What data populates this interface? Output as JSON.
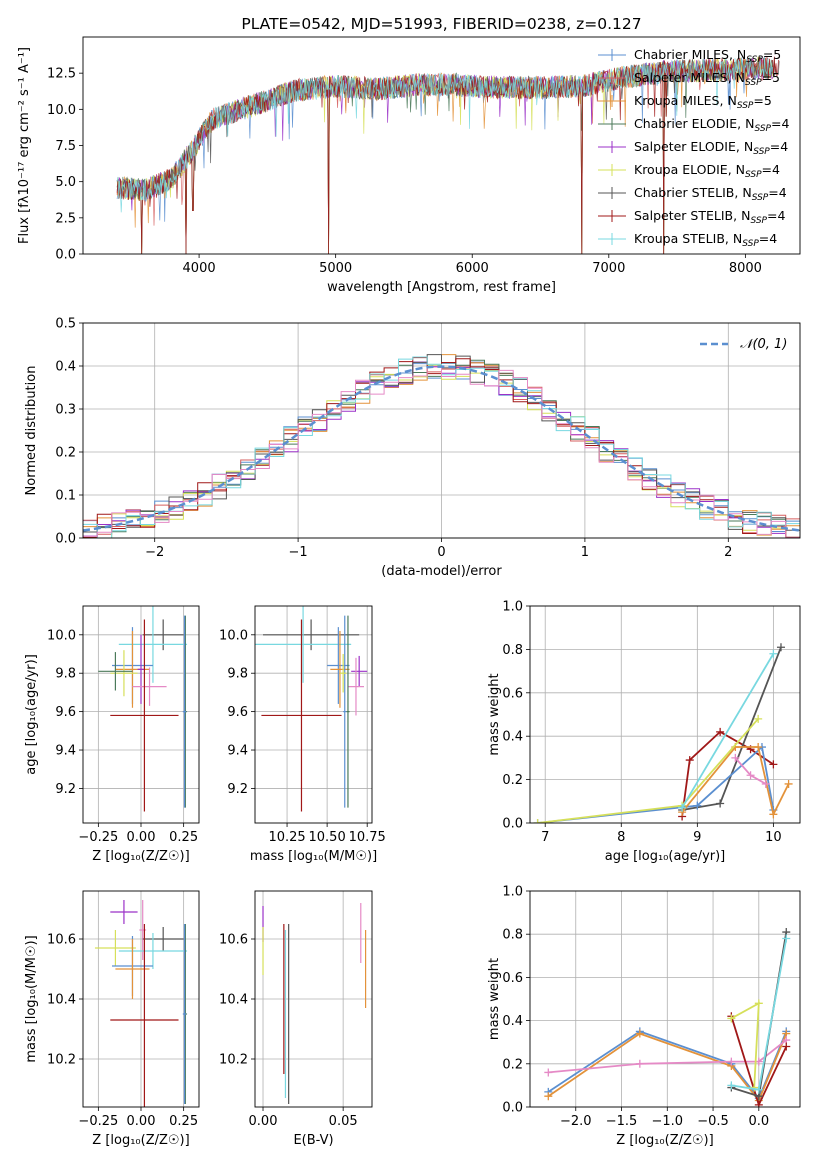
{
  "chart_data": [
    {
      "id": "spectrum",
      "type": "line",
      "title": "PLATE=0542, MJD=51993, FIBERID=0238, z=0.127",
      "xlabel": "wavelength [Angstrom, rest frame]",
      "ylabel": "Flux [fλ10⁻¹⁷ erg cm⁻² s⁻¹ A⁻¹]",
      "xlim": [
        3150,
        8400
      ],
      "ylim": [
        0,
        15
      ],
      "xticks": [
        "4000",
        "5000",
        "6000",
        "7000",
        "8000"
      ],
      "yticks": [
        "0.0",
        "2.5",
        "5.0",
        "7.5",
        "10.0",
        "12.5"
      ],
      "continuum": [
        [
          3400,
          4.6
        ],
        [
          3600,
          4.4
        ],
        [
          3800,
          5.2
        ],
        [
          3950,
          7.2
        ],
        [
          4100,
          9.3
        ],
        [
          4300,
          10.0
        ],
        [
          4500,
          10.6
        ],
        [
          4700,
          11.3
        ],
        [
          5000,
          11.6
        ],
        [
          5300,
          11.4
        ],
        [
          5600,
          11.7
        ],
        [
          5900,
          11.7
        ],
        [
          6200,
          11.5
        ],
        [
          6500,
          11.5
        ],
        [
          6800,
          11.6
        ],
        [
          7100,
          12.2
        ],
        [
          7400,
          12.6
        ],
        [
          7700,
          12.7
        ],
        [
          8000,
          12.8
        ],
        [
          8200,
          12.9
        ]
      ],
      "dips": [
        [
          3580,
          0
        ],
        [
          3905,
          0
        ],
        [
          3955,
          3.0
        ],
        [
          4950,
          0
        ],
        [
          6800,
          0
        ],
        [
          7400,
          0
        ],
        [
          7420,
          9.5
        ]
      ],
      "legend_position": "upper right",
      "legend": [
        {
          "imf": "Chabrier",
          "lib": "MILES",
          "n": "5",
          "color": "#5b8fd0"
        },
        {
          "imf": "Salpeter",
          "lib": "MILES",
          "n": "5",
          "color": "#d65f5f"
        },
        {
          "imf": "Kroupa",
          "lib": "MILES",
          "n": "5",
          "color": "#e3923a"
        },
        {
          "imf": "Chabrier",
          "lib": "ELODIE",
          "n": "4",
          "color": "#4b7a5a"
        },
        {
          "imf": "Salpeter",
          "lib": "ELODIE",
          "n": "4",
          "color": "#9b32c8"
        },
        {
          "imf": "Kroupa",
          "lib": "ELODIE",
          "n": "4",
          "color": "#d6e05a"
        },
        {
          "imf": "Chabrier",
          "lib": "STELIB",
          "n": "4",
          "color": "#555555"
        },
        {
          "imf": "Salpeter",
          "lib": "STELIB",
          "n": "4",
          "color": "#a01818"
        },
        {
          "imf": "Kroupa",
          "lib": "STELIB",
          "n": "4",
          "color": "#78d8e0"
        }
      ]
    },
    {
      "id": "residuals",
      "type": "line",
      "xlabel": "(data-model)/error",
      "ylabel": "Normed distribution",
      "xlim": [
        -2.5,
        2.5
      ],
      "ylim": [
        0,
        0.5
      ],
      "xticks": [
        "−2",
        "−1",
        "0",
        "1",
        "2"
      ],
      "yticks": [
        "0.0",
        "0.1",
        "0.2",
        "0.3",
        "0.4",
        "0.5"
      ],
      "grid": true,
      "series": [
        {
          "name": "𝒩(0, 1)",
          "color": "#5b8fd0",
          "dash": true
        }
      ],
      "hist_bin_width": 0.1
    },
    {
      "id": "age-vs-z",
      "type": "scatter",
      "xlabel": "Z [log₁₀(Z/Z☉)]",
      "ylabel": "age  [log₁₀(age/yr)]",
      "xlim": [
        -0.34,
        0.34
      ],
      "ylim": [
        9.02,
        10.15
      ],
      "xticks": [
        "−0.25",
        "0.00",
        "0.25"
      ],
      "yticks": [
        "9.2",
        "9.4",
        "9.6",
        "9.8",
        "10.0"
      ],
      "grid": true,
      "points": [
        {
          "color": "#555555",
          "x": 0.13,
          "xe": 0.12,
          "y": 10.0,
          "ye": 0.08
        },
        {
          "color": "#78d8e0",
          "x": 0.07,
          "xe": 0.2,
          "y": 9.95,
          "ye": 0.2
        },
        {
          "color": "#5b8fd0",
          "x": -0.05,
          "xe": 0.12,
          "y": 9.84,
          "ye": 0.2
        },
        {
          "color": "#e3923a",
          "x": -0.05,
          "xe": 0.1,
          "y": 9.82,
          "ye": 0.2
        },
        {
          "color": "#d6e05a",
          "x": -0.1,
          "xe": 0.08,
          "y": 9.8,
          "ye": 0.12
        },
        {
          "color": "#4b7a5a",
          "x": -0.15,
          "xe": 0.1,
          "y": 9.81,
          "ye": 0.1
        },
        {
          "color": "#9b32c8",
          "x": 0.0,
          "xe": 0.02,
          "y": 9.82,
          "ye": 0.18
        },
        {
          "color": "#e58ac6",
          "x": 0.05,
          "xe": 0.1,
          "y": 9.73,
          "ye": 0.1
        },
        {
          "color": "#a01818",
          "x": 0.02,
          "xe": 0.2,
          "y": 9.58,
          "ye": 0.5
        },
        {
          "color": "#4b7a5a",
          "x": 0.26,
          "xe": 0.01,
          "y": 9.6,
          "ye": 0.5
        },
        {
          "color": "#5b8fd0",
          "x": 0.255,
          "xe": 0.01,
          "y": 9.6,
          "ye": 0.5
        }
      ]
    },
    {
      "id": "age-vs-mass",
      "type": "scatter",
      "xlabel": "mass [log₁₀(M/M☉)]",
      "xlim": [
        10.05,
        10.78
      ],
      "ylim": [
        9.02,
        10.15
      ],
      "xticks": [
        "10.25",
        "10.50",
        "10.75"
      ],
      "yticks": [
        "9.2",
        "9.4",
        "9.6",
        "9.8",
        "10.0"
      ],
      "grid": true,
      "points": [
        {
          "color": "#555555",
          "x": 10.4,
          "xe": 0.3,
          "y": 10.0,
          "ye": 0.08
        },
        {
          "color": "#78d8e0",
          "x": 10.35,
          "xe": 0.3,
          "y": 9.95,
          "ye": 0.2
        },
        {
          "color": "#5b8fd0",
          "x": 10.57,
          "xe": 0.07,
          "y": 9.84,
          "ye": 0.2
        },
        {
          "color": "#e3923a",
          "x": 10.58,
          "xe": 0.06,
          "y": 9.82,
          "ye": 0.2
        },
        {
          "color": "#9b32c8",
          "x": 10.7,
          "xe": 0.05,
          "y": 9.81,
          "ye": 0.08
        },
        {
          "color": "#e58ac6",
          "x": 10.68,
          "xe": 0.05,
          "y": 9.73,
          "ye": 0.15
        },
        {
          "color": "#a01818",
          "x": 10.34,
          "xe": 0.25,
          "y": 9.58,
          "ye": 0.5
        },
        {
          "color": "#4b7a5a",
          "x": 10.63,
          "xe": 0.01,
          "y": 9.6,
          "ye": 0.5
        },
        {
          "color": "#5b8fd0",
          "x": 10.61,
          "xe": 0.01,
          "y": 9.6,
          "ye": 0.5
        },
        {
          "color": "#d6e05a",
          "x": 10.6,
          "xe": 0.02,
          "y": 9.8,
          "ye": 0.1
        }
      ]
    },
    {
      "id": "weight-vs-age",
      "type": "line",
      "xlabel": "age  [log₁₀(age/yr)]",
      "ylabel": "mass weight",
      "xlim": [
        6.8,
        10.35
      ],
      "ylim": [
        0,
        1
      ],
      "xticks": [
        "7",
        "8",
        "9",
        "10"
      ],
      "yticks": [
        "0.0",
        "0.2",
        "0.4",
        "0.6",
        "0.8",
        "1.0"
      ],
      "grid": true,
      "series": [
        {
          "color": "#a01818",
          "points": [
            [
              8.8,
              0.03
            ],
            [
              8.9,
              0.29
            ],
            [
              9.3,
              0.42
            ],
            [
              9.7,
              0.34
            ],
            [
              10.0,
              0.27
            ]
          ]
        },
        {
          "color": "#555555",
          "points": [
            [
              8.8,
              0.06
            ],
            [
              9.3,
              0.09
            ],
            [
              10.1,
              0.81
            ]
          ]
        },
        {
          "color": "#5b8fd0",
          "points": [
            [
              6.9,
              0.0
            ],
            [
              9.0,
              0.08
            ],
            [
              9.85,
              0.35
            ],
            [
              10.0,
              0.06
            ]
          ]
        },
        {
          "color": "#e3923a",
          "points": [
            [
              8.8,
              0.05
            ],
            [
              9.5,
              0.35
            ],
            [
              9.8,
              0.35
            ],
            [
              10.0,
              0.04
            ],
            [
              10.2,
              0.18
            ]
          ]
        },
        {
          "color": "#d6e05a",
          "points": [
            [
              6.9,
              0.0
            ],
            [
              8.8,
              0.08
            ],
            [
              9.8,
              0.48
            ]
          ]
        },
        {
          "color": "#78d8e0",
          "points": [
            [
              8.8,
              0.07
            ],
            [
              10.0,
              0.78
            ]
          ]
        },
        {
          "color": "#e58ac6",
          "points": [
            [
              9.5,
              0.3
            ],
            [
              9.7,
              0.22
            ],
            [
              9.9,
              0.18
            ]
          ]
        }
      ]
    },
    {
      "id": "mass-vs-z",
      "type": "scatter",
      "xlabel": "Z [log₁₀(Z/Z☉)]",
      "ylabel": "mass [log₁₀(M/M☉)]",
      "xlim": [
        -0.34,
        0.34
      ],
      "ylim": [
        10.04,
        10.76
      ],
      "xticks": [
        "−0.25",
        "0.00",
        "0.25"
      ],
      "yticks": [
        "10.2",
        "10.4",
        "10.6"
      ],
      "grid": true,
      "points": [
        {
          "color": "#9b32c8",
          "x": -0.1,
          "xe": 0.08,
          "y": 10.69,
          "ye": 0.04
        },
        {
          "color": "#e58ac6",
          "x": 0.01,
          "xe": 0.02,
          "y": 10.63,
          "ye": 0.1
        },
        {
          "color": "#555555",
          "x": 0.13,
          "xe": 0.12,
          "y": 10.6,
          "ye": 0.04
        },
        {
          "color": "#d6e05a",
          "x": -0.15,
          "xe": 0.12,
          "y": 10.57,
          "ye": 0.06
        },
        {
          "color": "#78d8e0",
          "x": 0.07,
          "xe": 0.2,
          "y": 10.56,
          "ye": 0.06
        },
        {
          "color": "#5b8fd0",
          "x": -0.05,
          "xe": 0.12,
          "y": 10.51,
          "ye": 0.1
        },
        {
          "color": "#e3923a",
          "x": -0.05,
          "xe": 0.1,
          "y": 10.5,
          "ye": 0.1
        },
        {
          "color": "#a01818",
          "x": 0.02,
          "xe": 0.2,
          "y": 10.33,
          "ye": 0.32
        },
        {
          "color": "#4b7a5a",
          "x": 0.26,
          "xe": 0.01,
          "y": 10.35,
          "ye": 0.3
        },
        {
          "color": "#5b8fd0",
          "x": 0.255,
          "xe": 0.01,
          "y": 10.35,
          "ye": 0.3
        }
      ]
    },
    {
      "id": "mass-vs-ebv",
      "type": "scatter",
      "xlabel": "E(B-V)",
      "xlim": [
        -0.005,
        0.068
      ],
      "ylim": [
        10.04,
        10.76
      ],
      "xticks": [
        "0.00",
        "0.05"
      ],
      "yticks": [
        "10.2",
        "10.4",
        "10.6"
      ],
      "grid": true,
      "points": [
        {
          "color": "#9b32c8",
          "x": 0.0,
          "y": 10.65,
          "ye": 0.06
        },
        {
          "color": "#d6e05a",
          "x": 0.0,
          "y": 10.56,
          "ye": 0.08
        },
        {
          "color": "#a01818",
          "x": 0.013,
          "y": 10.4,
          "ye": 0.25
        },
        {
          "color": "#555555",
          "x": 0.016,
          "y": 10.35,
          "ye": 0.3
        },
        {
          "color": "#78d8e0",
          "x": 0.014,
          "y": 10.35,
          "ye": 0.28
        },
        {
          "color": "#e58ac6",
          "x": 0.061,
          "y": 10.62,
          "ye": 0.1
        },
        {
          "color": "#e3923a",
          "x": 0.064,
          "y": 10.5,
          "ye": 0.13
        }
      ]
    },
    {
      "id": "weight-vs-z",
      "type": "line",
      "xlabel": "Z [log₁₀(Z/Z☉)]",
      "ylabel": "mass weight",
      "xlim": [
        -2.5,
        0.45
      ],
      "ylim": [
        0,
        1
      ],
      "xticks": [
        "−2.0",
        "−1.5",
        "−1.0",
        "−0.5",
        "0.0"
      ],
      "yticks": [
        "0.0",
        "0.2",
        "0.4",
        "0.6",
        "0.8",
        "1.0"
      ],
      "grid": true,
      "series": [
        {
          "color": "#5b8fd0",
          "points": [
            [
              -2.3,
              0.07
            ],
            [
              -1.3,
              0.35
            ],
            [
              -0.3,
              0.2
            ],
            [
              0.0,
              0.04
            ],
            [
              0.3,
              0.35
            ]
          ]
        },
        {
          "color": "#e3923a",
          "points": [
            [
              -2.3,
              0.05
            ],
            [
              -1.3,
              0.34
            ],
            [
              -0.3,
              0.19
            ],
            [
              0.0,
              0.03
            ],
            [
              0.3,
              0.34
            ]
          ]
        },
        {
          "color": "#e58ac6",
          "points": [
            [
              -2.3,
              0.16
            ],
            [
              -1.3,
              0.2
            ],
            [
              -0.3,
              0.21
            ],
            [
              0.0,
              0.21
            ],
            [
              0.3,
              0.31
            ]
          ]
        },
        {
          "color": "#a01818",
          "points": [
            [
              -0.3,
              0.42
            ],
            [
              0.0,
              0.01
            ],
            [
              0.3,
              0.28
            ]
          ]
        },
        {
          "color": "#d6e05a",
          "points": [
            [
              -0.3,
              0.41
            ],
            [
              0.0,
              0.48
            ],
            [
              -0.05,
              0.09
            ]
          ]
        },
        {
          "color": "#555555",
          "points": [
            [
              -0.3,
              0.09
            ],
            [
              0.0,
              0.05
            ],
            [
              0.3,
              0.81
            ]
          ]
        },
        {
          "color": "#78d8e0",
          "points": [
            [
              -0.3,
              0.1
            ],
            [
              0.0,
              0.08
            ],
            [
              0.3,
              0.78
            ]
          ]
        }
      ]
    }
  ]
}
